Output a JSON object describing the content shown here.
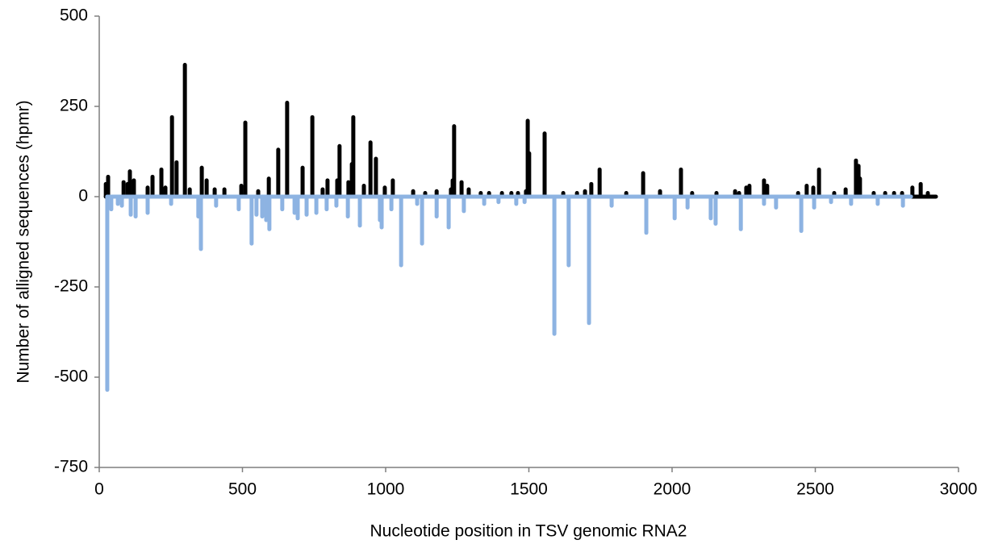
{
  "chart_data": {
    "type": "bar",
    "xlabel": "Nucleotide position in  TSV genomic RNA2",
    "ylabel": "Number of alligned sequences (hpmr)",
    "xlim": [
      0,
      3000
    ],
    "xticks": [
      0,
      500,
      1000,
      1500,
      2000,
      2500,
      3000
    ],
    "ylim": [
      -750,
      500
    ],
    "yticks": [
      500,
      250,
      0,
      -250,
      -500,
      -750
    ],
    "series": [
      {
        "color": "#000000",
        "x": [
          23,
          31,
          85,
          99,
          107,
          121,
          169,
          186,
          217,
          231,
          254,
          270,
          299,
          316,
          358,
          375,
          403,
          437,
          496,
          510,
          555,
          592,
          625,
          656,
          710,
          744,
          780,
          797,
          831,
          839,
          870,
          882,
          887,
          924,
          947,
          966,
          997,
          1025,
          1096,
          1138,
          1178,
          1228,
          1234,
          1239,
          1265,
          1290,
          1332,
          1361,
          1406,
          1439,
          1462,
          1490,
          1496,
          1501,
          1555,
          1620,
          1668,
          1696,
          1718,
          1747,
          1840,
          1899,
          1958,
          2031,
          2070,
          2155,
          2220,
          2234,
          2259,
          2270,
          2321,
          2332,
          2440,
          2470,
          2493,
          2513,
          2566,
          2606,
          2642,
          2651,
          2656,
          2704,
          2744,
          2775,
          2803,
          2839,
          2868,
          2893
        ],
        "values": [
          35,
          55,
          40,
          35,
          70,
          45,
          25,
          55,
          75,
          25,
          220,
          95,
          365,
          20,
          80,
          45,
          20,
          20,
          30,
          205,
          15,
          50,
          130,
          260,
          80,
          220,
          20,
          45,
          45,
          140,
          40,
          90,
          220,
          30,
          150,
          105,
          25,
          45,
          15,
          10,
          15,
          20,
          45,
          195,
          40,
          20,
          10,
          10,
          10,
          10,
          10,
          15,
          210,
          120,
          175,
          10,
          10,
          15,
          35,
          75,
          10,
          65,
          15,
          75,
          10,
          10,
          15,
          10,
          25,
          30,
          45,
          30,
          10,
          30,
          25,
          75,
          10,
          20,
          100,
          85,
          50,
          10,
          10,
          10,
          10,
          25,
          35,
          10
        ]
      },
      {
        "color": "#8db3e2",
        "x": [
          28,
          42,
          65,
          79,
          110,
          127,
          169,
          251,
          346,
          355,
          408,
          487,
          532,
          549,
          569,
          583,
          594,
          639,
          682,
          693,
          724,
          758,
          794,
          828,
          868,
          910,
          980,
          986,
          1020,
          1054,
          1110,
          1127,
          1178,
          1220,
          1273,
          1344,
          1394,
          1456,
          1485,
          1589,
          1639,
          1710,
          1789,
          1910,
          2009,
          2054,
          2135,
          2152,
          2240,
          2321,
          2363,
          2451,
          2496,
          2555,
          2625,
          2718,
          2806
        ],
        "values": [
          -535,
          -35,
          -20,
          -25,
          -50,
          -55,
          -45,
          -20,
          -55,
          -145,
          -25,
          -35,
          -130,
          -50,
          -55,
          -65,
          -90,
          -35,
          -45,
          -60,
          -50,
          -45,
          -35,
          -25,
          -55,
          -80,
          -65,
          -85,
          -35,
          -190,
          -20,
          -130,
          -55,
          -85,
          -40,
          -20,
          -15,
          -20,
          -15,
          -380,
          -190,
          -350,
          -25,
          -100,
          -60,
          -30,
          -60,
          -75,
          -90,
          -20,
          -30,
          -95,
          -30,
          -15,
          -20,
          -20,
          -25
        ]
      }
    ]
  }
}
